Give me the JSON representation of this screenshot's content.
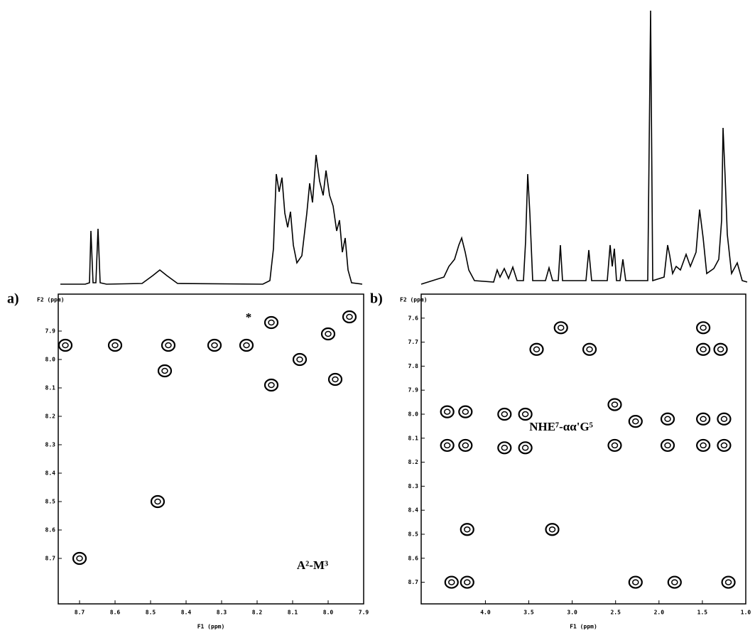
{
  "chart_data": [
    {
      "type": "contour",
      "label": "a)",
      "x_label": "F1 (ppm)",
      "y_label": "F2 (ppm)",
      "annotations": [
        "*",
        "A²-M³"
      ],
      "xlim": [
        8.76,
        7.9
      ],
      "xticks": [
        8.7,
        8.6,
        8.5,
        8.4,
        8.3,
        8.2,
        8.1,
        {
          "value": 8,
          "label": "8.0"
        },
        7.9
      ],
      "ylim": [
        7.77,
        8.86
      ],
      "yticks": [
        7.9,
        {
          "value": 8,
          "label": "8.0"
        },
        8.1,
        8.2,
        8.3,
        8.4,
        8.5,
        8.6,
        8.7
      ],
      "peaks": {
        "x": [
          8.7,
          8.48,
          8.16,
          8.16,
          8.08,
          8.0,
          7.94,
          8.74,
          8.6,
          8.45,
          8.32,
          8.23,
          8.46,
          7.98
        ],
        "y": [
          8.7,
          8.5,
          7.87,
          8.09,
          8.0,
          7.91,
          7.85,
          7.95,
          7.95,
          7.95,
          7.95,
          7.95,
          8.04,
          8.07
        ]
      }
    },
    {
      "type": "contour",
      "label": "b)",
      "x_label": "F1 (ppm)",
      "y_label": "F2 (ppm)",
      "annotations": [
        "NHE⁷-αα'G⁵"
      ],
      "xlim": [
        4.74,
        1.0
      ],
      "xticks": [
        {
          "value": 4,
          "label": "4.0"
        },
        3.5,
        {
          "value": 3,
          "label": "3.0"
        },
        2.5,
        {
          "value": 2,
          "label": "2.0"
        },
        1.5,
        {
          "value": 1,
          "label": "1.0"
        }
      ],
      "ylim": [
        7.5,
        8.79
      ],
      "yticks": [
        7.6,
        7.7,
        7.8,
        7.9,
        {
          "value": 8,
          "label": "8.0"
        },
        8.1,
        8.2,
        8.3,
        8.4,
        8.5,
        8.6,
        8.7
      ],
      "peaks": {
        "x": [
          4.23,
          4.23,
          4.44,
          4.44,
          3.78,
          3.78,
          3.54,
          3.54,
          3.13,
          2.8,
          3.41,
          2.51,
          2.51,
          2.27,
          1.9,
          1.9,
          1.49,
          1.49,
          1.25,
          1.25,
          1.49,
          1.49,
          1.29,
          4.39,
          4.21,
          2.27,
          1.82,
          1.2,
          3.23,
          4.21
        ],
        "y": [
          7.99,
          8.13,
          7.99,
          8.13,
          8.0,
          8.14,
          8.0,
          8.14,
          7.64,
          7.73,
          7.73,
          7.96,
          8.13,
          8.03,
          8.02,
          8.13,
          8.02,
          8.13,
          8.02,
          8.13,
          7.64,
          7.73,
          7.73,
          8.7,
          8.7,
          8.7,
          8.7,
          8.7,
          8.48,
          8.48
        ]
      }
    }
  ]
}
